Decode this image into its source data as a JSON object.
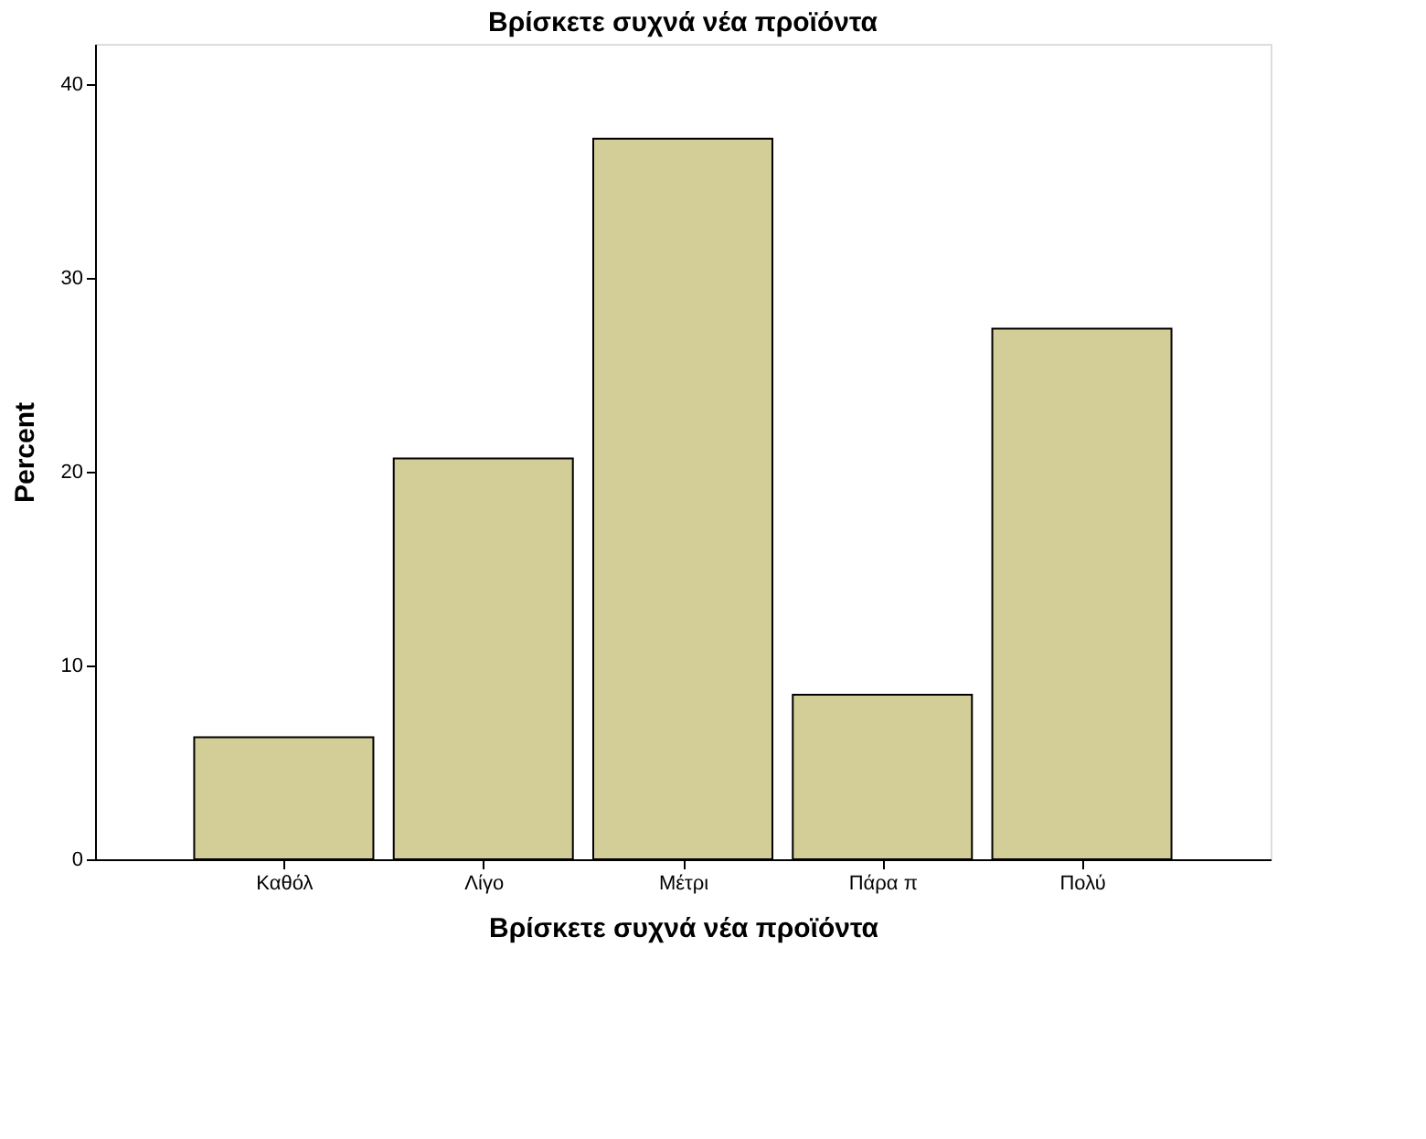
{
  "chart_data": {
    "type": "bar",
    "title": "Βρίσκετε συχνά νέα προϊόντα",
    "xlabel": "Βρίσκετε συχνά νέα προϊόντα",
    "ylabel": "Percent",
    "categories": [
      "Καθόλ",
      "Λίγο",
      "Μέτρι",
      "Πάρα π",
      "Πολύ"
    ],
    "values": [
      6.3,
      20.7,
      37.2,
      8.5,
      27.4
    ],
    "color": "#d3ce97",
    "ylim": [
      0,
      42.1
    ],
    "yticks": [
      0,
      10,
      20,
      30,
      40
    ],
    "grid": false
  }
}
